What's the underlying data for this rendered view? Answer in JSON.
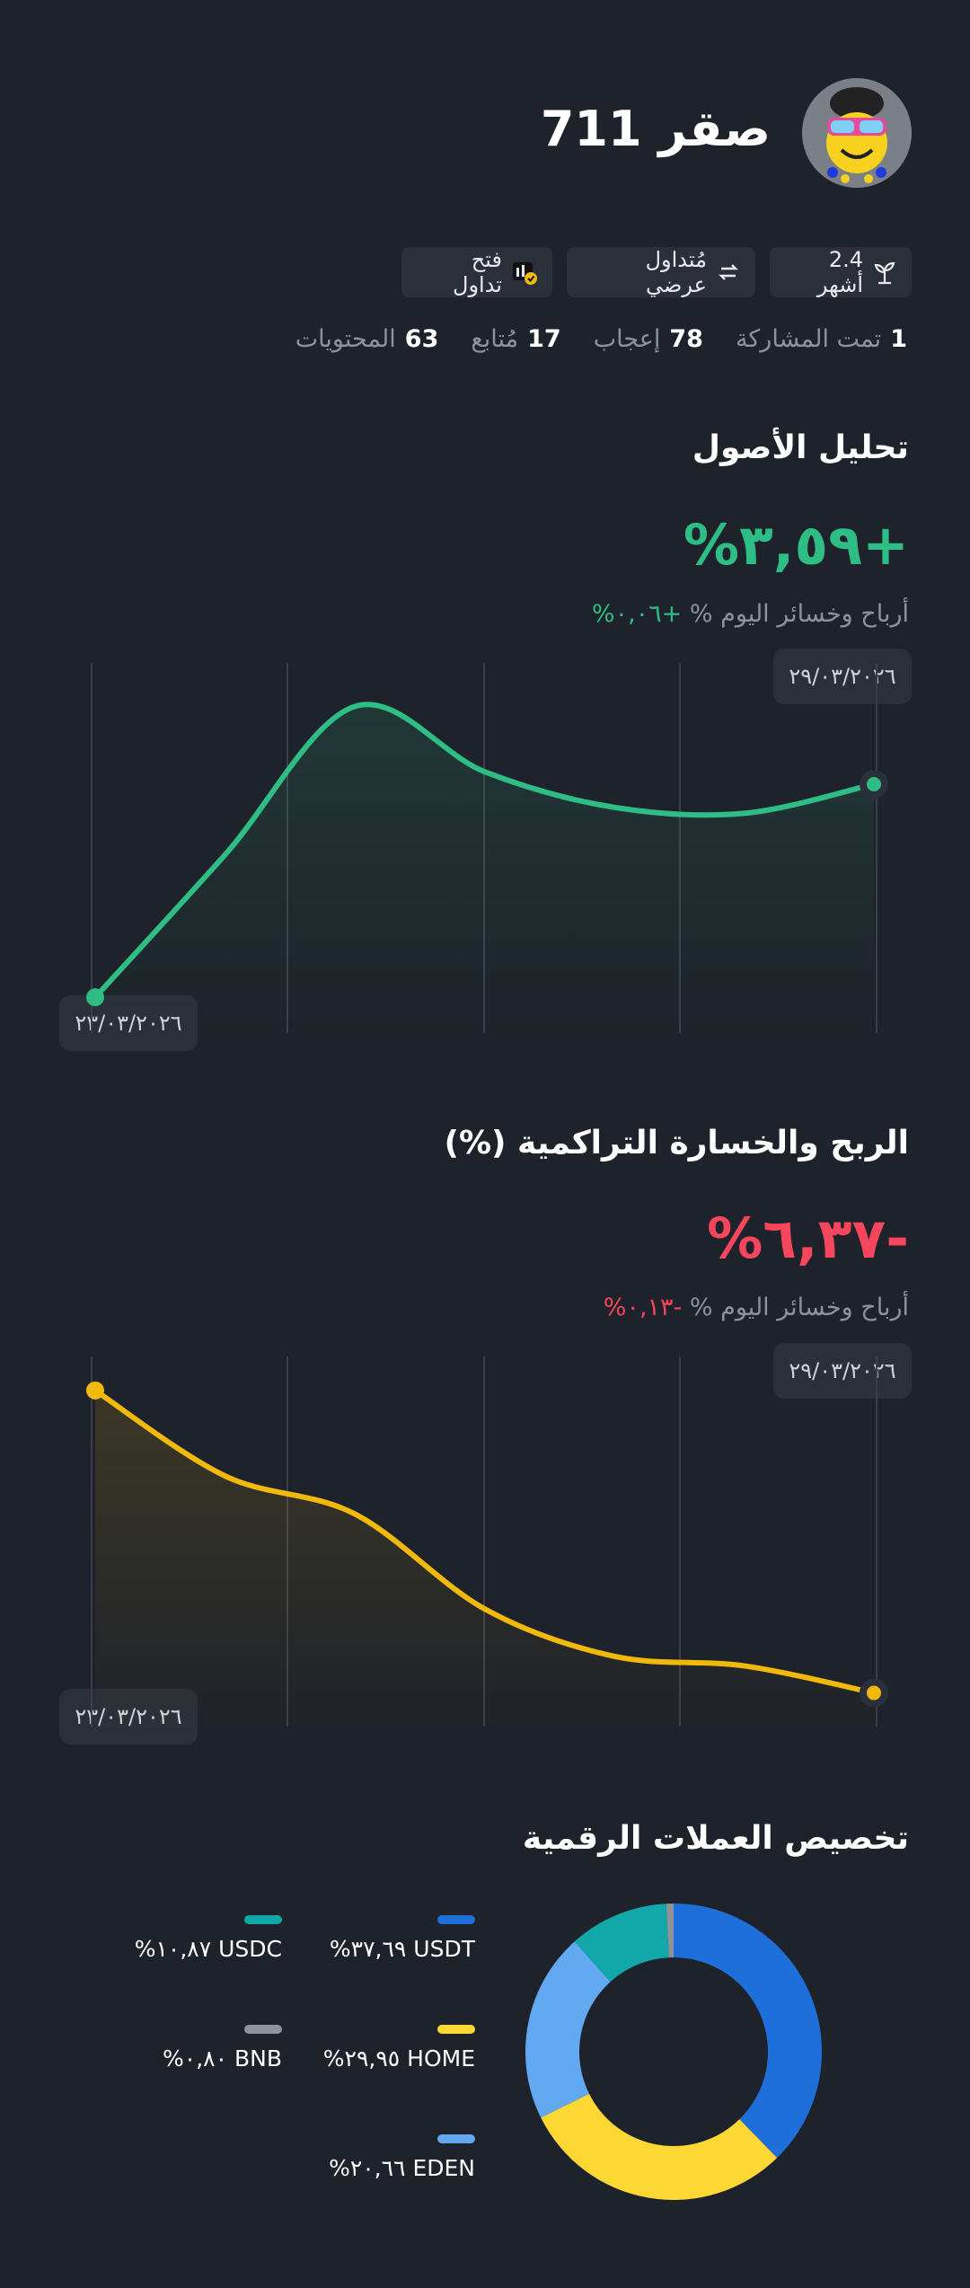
{
  "colors": {
    "background": "#1e222a",
    "panel": "#2a2f39",
    "green": "#2ebd85",
    "red": "#f6465d",
    "yellow": "#f0b90b",
    "muted": "#8c939e"
  },
  "profile": {
    "username": "صقر 711",
    "avatar_icon": "cartoon-avatar-icon"
  },
  "chips": [
    {
      "icon": "sprout-icon",
      "label": "2.4 أشهر"
    },
    {
      "icon": "swap-icon",
      "label": "مُتداول عرضي"
    },
    {
      "icon": "open-trade-icon",
      "label": "فتح تداول"
    }
  ],
  "stats": [
    {
      "value": "1",
      "label": "تمت المشاركة"
    },
    {
      "value": "78",
      "label": "إعجاب"
    },
    {
      "value": "17",
      "label": "مُتابع"
    },
    {
      "value": "63",
      "label": "المحتويات"
    }
  ],
  "asset_analysis": {
    "title": "تحليل الأصول",
    "total_pct": "+٣,٥٩%",
    "today_label": "أرباح وخسائر اليوم %",
    "today_value": "+٠,٠٦%",
    "end_date": "٢٩/٠٣/٢٠٢٦",
    "start_date": "٢٣/٠٣/٢٠٢٦"
  },
  "cumulative_pnl": {
    "title": "الربح والخسارة التراكمية (%)",
    "total_pct": "-٦,٣٧%",
    "today_label": "أرباح وخسائر اليوم %",
    "today_value": "-٠,١٣%",
    "end_date": "٢٩/٠٣/٢٠٢٦",
    "start_date": "٢٣/٠٣/٢٠٢٦"
  },
  "allocation": {
    "title": "تخصيص العملات الرقمية",
    "items": [
      {
        "name": "USDT",
        "pct": "٣٧,٦٩%",
        "color": "#1e6fd9"
      },
      {
        "name": "USDC",
        "pct": "١٠,٨٧%",
        "color": "#12a7a9"
      },
      {
        "name": "HOME",
        "pct": "٢٩,٩٥%",
        "color": "#fdd835"
      },
      {
        "name": "BNB",
        "pct": "٠,٨٠%",
        "color": "#8e939b"
      },
      {
        "name": "EDEN",
        "pct": "٢٠,٦٦%",
        "color": "#63a9f2"
      }
    ]
  },
  "chart_data": [
    {
      "type": "line",
      "title": "تحليل الأصول",
      "x": [
        "٢٣/٠٣/٢٠٢٦",
        "",
        "",
        "",
        "",
        "",
        "٢٩/٠٣/٢٠٢٦"
      ],
      "series": [
        {
          "values": [
            0.0,
            2.4,
            4.9,
            3.8,
            3.2,
            3.1,
            3.59
          ]
        }
      ],
      "ylim": [
        -0.3,
        5.3
      ],
      "color": "#2ebd85"
    },
    {
      "type": "line",
      "title": "الربح والخسارة التراكمية (%)",
      "x": [
        "٢٣/٠٣/٢٠٢٦",
        "",
        "",
        "",
        "",
        "",
        "٢٩/٠٣/٢٠٢٦"
      ],
      "series": [
        {
          "values": [
            0.0,
            -1.8,
            -2.6,
            -4.6,
            -5.6,
            -5.8,
            -6.37
          ]
        }
      ],
      "ylim": [
        -6.7,
        0.3
      ],
      "color": "#f0b90b"
    },
    {
      "type": "pie",
      "title": "تخصيص العملات الرقمية",
      "categories": [
        "USDT",
        "HOME",
        "EDEN",
        "USDC",
        "BNB"
      ],
      "values": [
        37.69,
        29.95,
        20.66,
        10.87,
        0.8
      ],
      "colors": [
        "#1e6fd9",
        "#fdd835",
        "#63a9f2",
        "#12a7a9",
        "#8e939b"
      ]
    }
  ]
}
